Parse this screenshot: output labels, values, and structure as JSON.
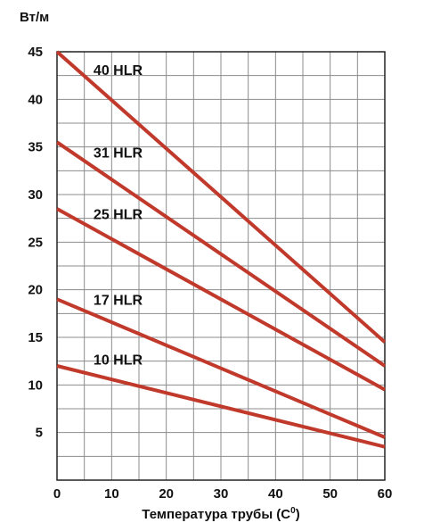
{
  "chart_data": {
    "type": "line",
    "title": "",
    "ylabel": "Вт/м",
    "xlabel_text": "Температура трубы (С",
    "xlabel_sup": "0",
    "xlabel_close": ")",
    "xlim": [
      0,
      60
    ],
    "ylim": [
      0,
      45
    ],
    "x_ticks": [
      0,
      10,
      20,
      30,
      40,
      50,
      60
    ],
    "y_ticks": [
      5,
      10,
      15,
      20,
      25,
      30,
      35,
      40,
      45
    ],
    "grid": true,
    "line_color": "#c0392b",
    "series": [
      {
        "name": "40 HLR",
        "x": [
          0,
          60
        ],
        "y": [
          45,
          14.5
        ]
      },
      {
        "name": "31 HLR",
        "x": [
          0,
          60
        ],
        "y": [
          35.5,
          12
        ]
      },
      {
        "name": "25 HLR",
        "x": [
          0,
          60
        ],
        "y": [
          28.5,
          9.5
        ]
      },
      {
        "name": "17 HLR",
        "x": [
          0,
          60
        ],
        "y": [
          19,
          4.5
        ]
      },
      {
        "name": "10 HLR",
        "x": [
          0,
          60
        ],
        "y": [
          12,
          3.5
        ]
      }
    ]
  }
}
